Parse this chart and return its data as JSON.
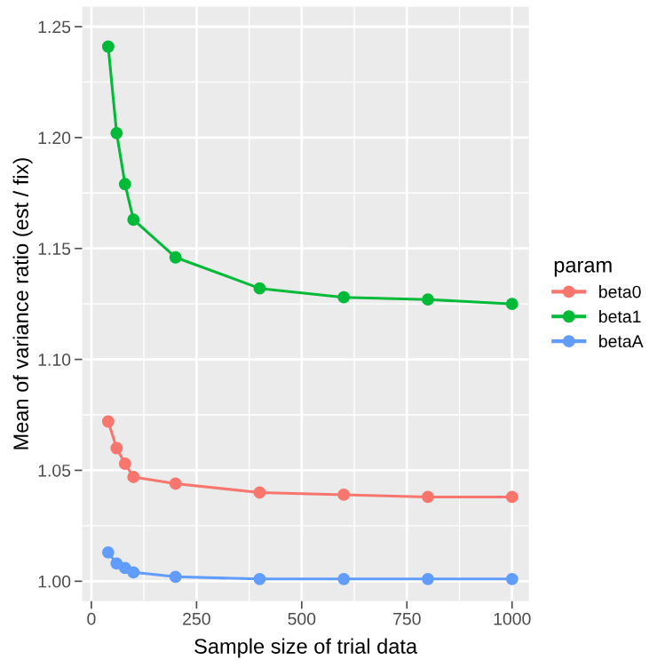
{
  "chart_data": {
    "type": "line",
    "xlabel": "Sample size of trial data",
    "ylabel": "Mean of variance ratio (est / fix)",
    "legend_title": "param",
    "x": [
      40,
      60,
      80,
      100,
      200,
      400,
      600,
      800,
      1000
    ],
    "series": [
      {
        "name": "beta0",
        "color": "#f8766d",
        "values": [
          1.072,
          1.06,
          1.053,
          1.047,
          1.044,
          1.04,
          1.039,
          1.038,
          1.038
        ]
      },
      {
        "name": "beta1",
        "color": "#00ba38",
        "values": [
          1.241,
          1.202,
          1.179,
          1.163,
          1.146,
          1.132,
          1.128,
          1.127,
          1.125
        ]
      },
      {
        "name": "betaA",
        "color": "#619cff",
        "values": [
          1.013,
          1.008,
          1.006,
          1.004,
          1.002,
          1.001,
          1.001,
          1.001,
          1.001
        ]
      }
    ],
    "xlim": [
      -22,
      1040
    ],
    "xticks": [
      0,
      250,
      500,
      750,
      1000
    ],
    "ylim": [
      0.991,
      1.259
    ],
    "yticks": [
      {
        "value": 1.0,
        "label": "1.00"
      },
      {
        "value": 1.05,
        "label": "1.05"
      },
      {
        "value": 1.1,
        "label": "1.10"
      },
      {
        "value": 1.15,
        "label": "1.15"
      },
      {
        "value": 1.2,
        "label": "1.20"
      },
      {
        "value": 1.25,
        "label": "1.25"
      }
    ],
    "grid": true,
    "legend": "right",
    "marker": "circle",
    "line_style": "solid"
  }
}
